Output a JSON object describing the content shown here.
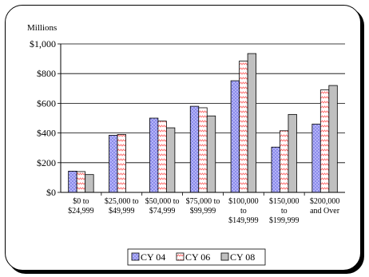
{
  "chart_data": {
    "type": "bar",
    "y_unit_label": "Millions",
    "ylim": [
      0,
      1000
    ],
    "yticks": [
      "$0",
      "$200",
      "$400",
      "$600",
      "$800",
      "$1,000"
    ],
    "ytick_values": [
      0,
      200,
      400,
      600,
      800,
      1000
    ],
    "categories": [
      [
        "$0 to",
        "$24,999"
      ],
      [
        "$25,000 to",
        "$49,999"
      ],
      [
        "$50,000 to",
        "$74,999"
      ],
      [
        "$75,000 to",
        "$99,999"
      ],
      [
        "$100,000",
        "to",
        "$149,999"
      ],
      [
        "$150,000",
        "to",
        "$199,999"
      ],
      [
        "$200,000",
        "and Over"
      ]
    ],
    "series": [
      {
        "name": "CY 04",
        "color": "#8c8cf0",
        "pattern": "dots",
        "values": [
          143,
          385,
          500,
          580,
          752,
          305,
          460
        ]
      },
      {
        "name": "CY 06",
        "color": "#ff9999",
        "pattern": "zigzag",
        "values": [
          140,
          390,
          480,
          570,
          885,
          415,
          690
        ]
      },
      {
        "name": "CY 08",
        "color": "#c0c0c0",
        "pattern": "solid",
        "values": [
          120,
          0,
          435,
          515,
          935,
          525,
          720
        ]
      }
    ],
    "grid": true,
    "legend_position": "bottom"
  }
}
